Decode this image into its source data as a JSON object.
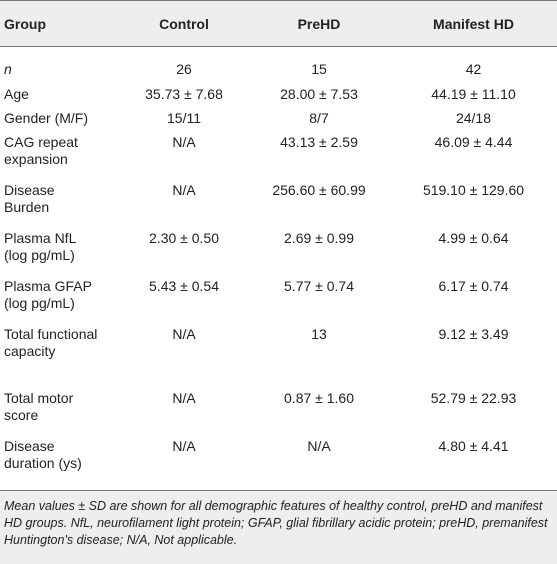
{
  "table": {
    "header": [
      "Group",
      "Control",
      "PreHD",
      "Manifest HD"
    ],
    "rows": [
      [
        "n",
        "26",
        "15",
        "42"
      ],
      [
        "Age",
        "35.73 ± 7.68",
        "28.00 ± 7.53",
        "44.19 ± 11.10"
      ],
      [
        "Gender (M/F)",
        "15/11",
        "8/7",
        "24/18"
      ],
      [
        "CAG repeat expansion",
        "N/A",
        "43.13 ± 2.59",
        "46.09 ± 4.44"
      ],
      [
        "Disease Burden",
        "N/A",
        "256.60 ± 60.99",
        "519.10 ± 129.60"
      ],
      [
        "Plasma NfL (log pg/mL)",
        "2.30 ± 0.50",
        "2.69 ± 0.99",
        "4.99 ± 0.64"
      ],
      [
        "Plasma GFAP (log pg/mL)",
        "5.43 ± 0.54",
        "5.77 ± 0.74",
        "6.17 ± 0.74"
      ],
      [
        "Total functional capacity",
        "N/A",
        "13",
        "9.12 ± 3.49"
      ],
      [
        "Total motor score",
        "N/A",
        "0.87 ± 1.60",
        "52.79 ± 22.93"
      ],
      [
        "Disease duration (ys)",
        "N/A",
        "N/A",
        "4.80 ± 4.41"
      ]
    ],
    "footnote": "Mean values ± SD are shown for all demographic features of healthy control, preHD and manifest HD groups. NfL, neurofilament light protein; GFAP, glial fibrillary acidic protein; preHD, premanifest Huntington's disease; N/A, Not applicable."
  }
}
